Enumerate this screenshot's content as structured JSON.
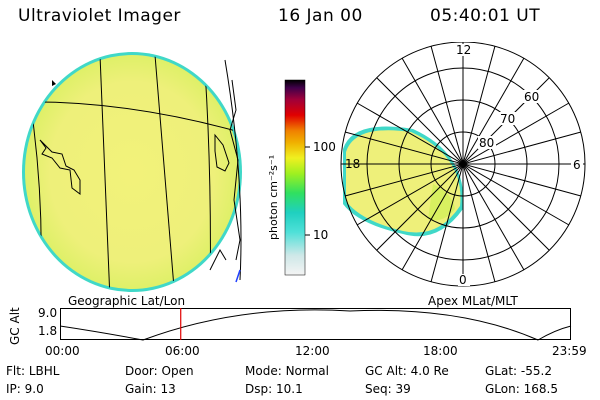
{
  "header": {
    "instrument": "Ultraviolet Imager",
    "date": "16 Jan 00",
    "time": "05:40:01 UT"
  },
  "left_panel": {
    "caption": "Geographic Lat/Lon"
  },
  "colorbar": {
    "unit_label": "photon cm⁻²s⁻¹",
    "ticks": [
      "100",
      "10"
    ],
    "scale": "log",
    "colors": [
      "#f4f4f4",
      "#cfe8e8",
      "#4fe0d8",
      "#1fd0c0",
      "#30e060",
      "#9ff020",
      "#f0f020",
      "#f0b000",
      "#f08000",
      "#e00000",
      "#a0003a",
      "#40004a",
      "#000000"
    ]
  },
  "right_panel": {
    "caption": "Apex MLat/MLT",
    "lat_labels": [
      "80",
      "70",
      "60"
    ],
    "mlt_labels": [
      "12",
      "18",
      "6",
      "0"
    ]
  },
  "altitude_plot": {
    "ylabel": "GC Alt",
    "y_ticks": [
      "9.0",
      "1.8"
    ],
    "x_ticks": [
      "00:00",
      "06:00",
      "12:00",
      "18:00",
      "23:59"
    ],
    "marker_time_hours": 5.67,
    "marker_color": "#e00000"
  },
  "info": {
    "row1": [
      {
        "label": "Flt:",
        "value": "LBHL"
      },
      {
        "label": "Door:",
        "value": "Open"
      },
      {
        "label": "Mode:",
        "value": "Normal"
      },
      {
        "label": "GC Alt:",
        "value": "4.0 Re"
      },
      {
        "label": "GLat:",
        "value": "-55.2"
      }
    ],
    "row2": [
      {
        "label": "IP:",
        "value": "9.0"
      },
      {
        "label": "Gain:",
        "value": "13"
      },
      {
        "label": "Dsp:",
        "value": "10.1"
      },
      {
        "label": "Seq:",
        "value": "39"
      },
      {
        "label": "GLon:",
        "value": "168.5"
      }
    ]
  }
}
